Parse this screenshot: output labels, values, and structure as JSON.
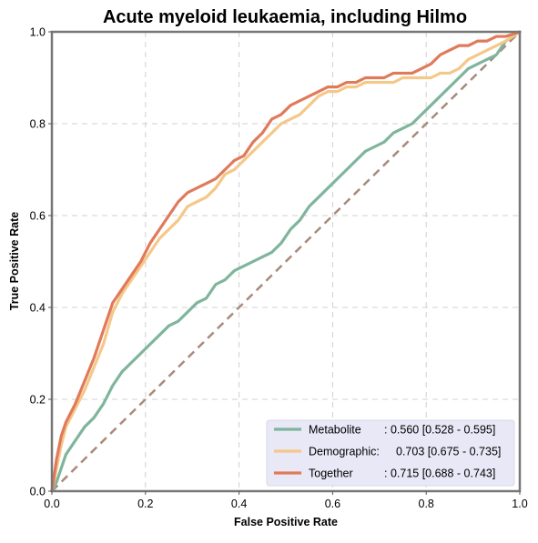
{
  "chart_data": {
    "type": "line",
    "title": "Acute myeloid leukaemia, including Hilmo",
    "xlabel": "False Positive Rate",
    "ylabel": "True Positive Rate",
    "xlim": [
      0,
      1
    ],
    "ylim": [
      0,
      1
    ],
    "grid": true,
    "legend_position": "lower-right",
    "x_ticks": [
      "0.0",
      "0.2",
      "0.4",
      "0.6",
      "0.8",
      "1.0"
    ],
    "y_ticks": [
      "0.0",
      "0.2",
      "0.4",
      "0.6",
      "0.8",
      "1.0"
    ],
    "diagonal": {
      "x": [
        0,
        1
      ],
      "y": [
        0,
        1
      ],
      "color": "#a88a7c"
    },
    "series": [
      {
        "name": "Metabolite",
        "auc_label": ": 0.560 [0.528 - 0.595]",
        "color": "#7fb59c",
        "x": [
          0,
          0.01,
          0.02,
          0.03,
          0.05,
          0.07,
          0.09,
          0.11,
          0.13,
          0.15,
          0.17,
          0.19,
          0.21,
          0.23,
          0.25,
          0.27,
          0.29,
          0.31,
          0.33,
          0.35,
          0.37,
          0.39,
          0.41,
          0.43,
          0.45,
          0.47,
          0.49,
          0.51,
          0.53,
          0.55,
          0.57,
          0.59,
          0.61,
          0.63,
          0.65,
          0.67,
          0.69,
          0.71,
          0.73,
          0.75,
          0.77,
          0.79,
          0.81,
          0.83,
          0.85,
          0.87,
          0.89,
          0.91,
          0.93,
          0.95,
          0.97,
          1.0
        ],
        "y": [
          0,
          0.02,
          0.05,
          0.08,
          0.11,
          0.14,
          0.16,
          0.19,
          0.23,
          0.26,
          0.28,
          0.3,
          0.32,
          0.34,
          0.36,
          0.37,
          0.39,
          0.41,
          0.42,
          0.45,
          0.46,
          0.48,
          0.49,
          0.5,
          0.51,
          0.52,
          0.54,
          0.57,
          0.59,
          0.62,
          0.64,
          0.66,
          0.68,
          0.7,
          0.72,
          0.74,
          0.75,
          0.76,
          0.78,
          0.79,
          0.8,
          0.82,
          0.84,
          0.86,
          0.88,
          0.9,
          0.92,
          0.93,
          0.94,
          0.95,
          0.98,
          1.0
        ]
      },
      {
        "name": "Demographic:",
        "auc_label": "0.703 [0.675 - 0.735]",
        "color": "#f4c888",
        "x": [
          0,
          0.01,
          0.02,
          0.03,
          0.05,
          0.07,
          0.09,
          0.11,
          0.13,
          0.15,
          0.17,
          0.19,
          0.21,
          0.23,
          0.25,
          0.27,
          0.29,
          0.31,
          0.33,
          0.35,
          0.37,
          0.39,
          0.41,
          0.43,
          0.45,
          0.47,
          0.49,
          0.51,
          0.53,
          0.55,
          0.57,
          0.59,
          0.61,
          0.63,
          0.65,
          0.67,
          0.69,
          0.71,
          0.73,
          0.75,
          0.77,
          0.79,
          0.81,
          0.83,
          0.85,
          0.87,
          0.89,
          0.91,
          0.93,
          0.95,
          0.97,
          1.0
        ],
        "y": [
          0,
          0.05,
          0.1,
          0.14,
          0.18,
          0.22,
          0.27,
          0.32,
          0.39,
          0.43,
          0.46,
          0.49,
          0.52,
          0.55,
          0.57,
          0.59,
          0.62,
          0.63,
          0.64,
          0.66,
          0.69,
          0.7,
          0.72,
          0.74,
          0.76,
          0.78,
          0.8,
          0.81,
          0.82,
          0.84,
          0.86,
          0.87,
          0.87,
          0.88,
          0.88,
          0.89,
          0.89,
          0.89,
          0.89,
          0.9,
          0.9,
          0.9,
          0.9,
          0.91,
          0.91,
          0.92,
          0.94,
          0.95,
          0.96,
          0.97,
          0.98,
          1.0
        ]
      },
      {
        "name": "Together",
        "auc_label": ": 0.715 [0.688 - 0.743]",
        "color": "#e07a5a",
        "x": [
          0,
          0.01,
          0.02,
          0.03,
          0.05,
          0.07,
          0.09,
          0.11,
          0.13,
          0.15,
          0.17,
          0.19,
          0.21,
          0.23,
          0.25,
          0.27,
          0.29,
          0.31,
          0.33,
          0.35,
          0.37,
          0.39,
          0.41,
          0.43,
          0.45,
          0.47,
          0.49,
          0.51,
          0.53,
          0.55,
          0.57,
          0.59,
          0.61,
          0.63,
          0.65,
          0.67,
          0.69,
          0.71,
          0.73,
          0.75,
          0.77,
          0.79,
          0.81,
          0.83,
          0.85,
          0.87,
          0.89,
          0.91,
          0.93,
          0.95,
          0.97,
          1.0
        ],
        "y": [
          0,
          0.07,
          0.12,
          0.15,
          0.19,
          0.24,
          0.29,
          0.35,
          0.41,
          0.44,
          0.47,
          0.5,
          0.54,
          0.57,
          0.6,
          0.63,
          0.65,
          0.66,
          0.67,
          0.68,
          0.7,
          0.72,
          0.73,
          0.76,
          0.78,
          0.81,
          0.82,
          0.84,
          0.85,
          0.86,
          0.87,
          0.88,
          0.88,
          0.89,
          0.89,
          0.9,
          0.9,
          0.9,
          0.91,
          0.91,
          0.91,
          0.92,
          0.93,
          0.95,
          0.96,
          0.97,
          0.97,
          0.98,
          0.98,
          0.99,
          0.99,
          1.0
        ]
      }
    ]
  }
}
